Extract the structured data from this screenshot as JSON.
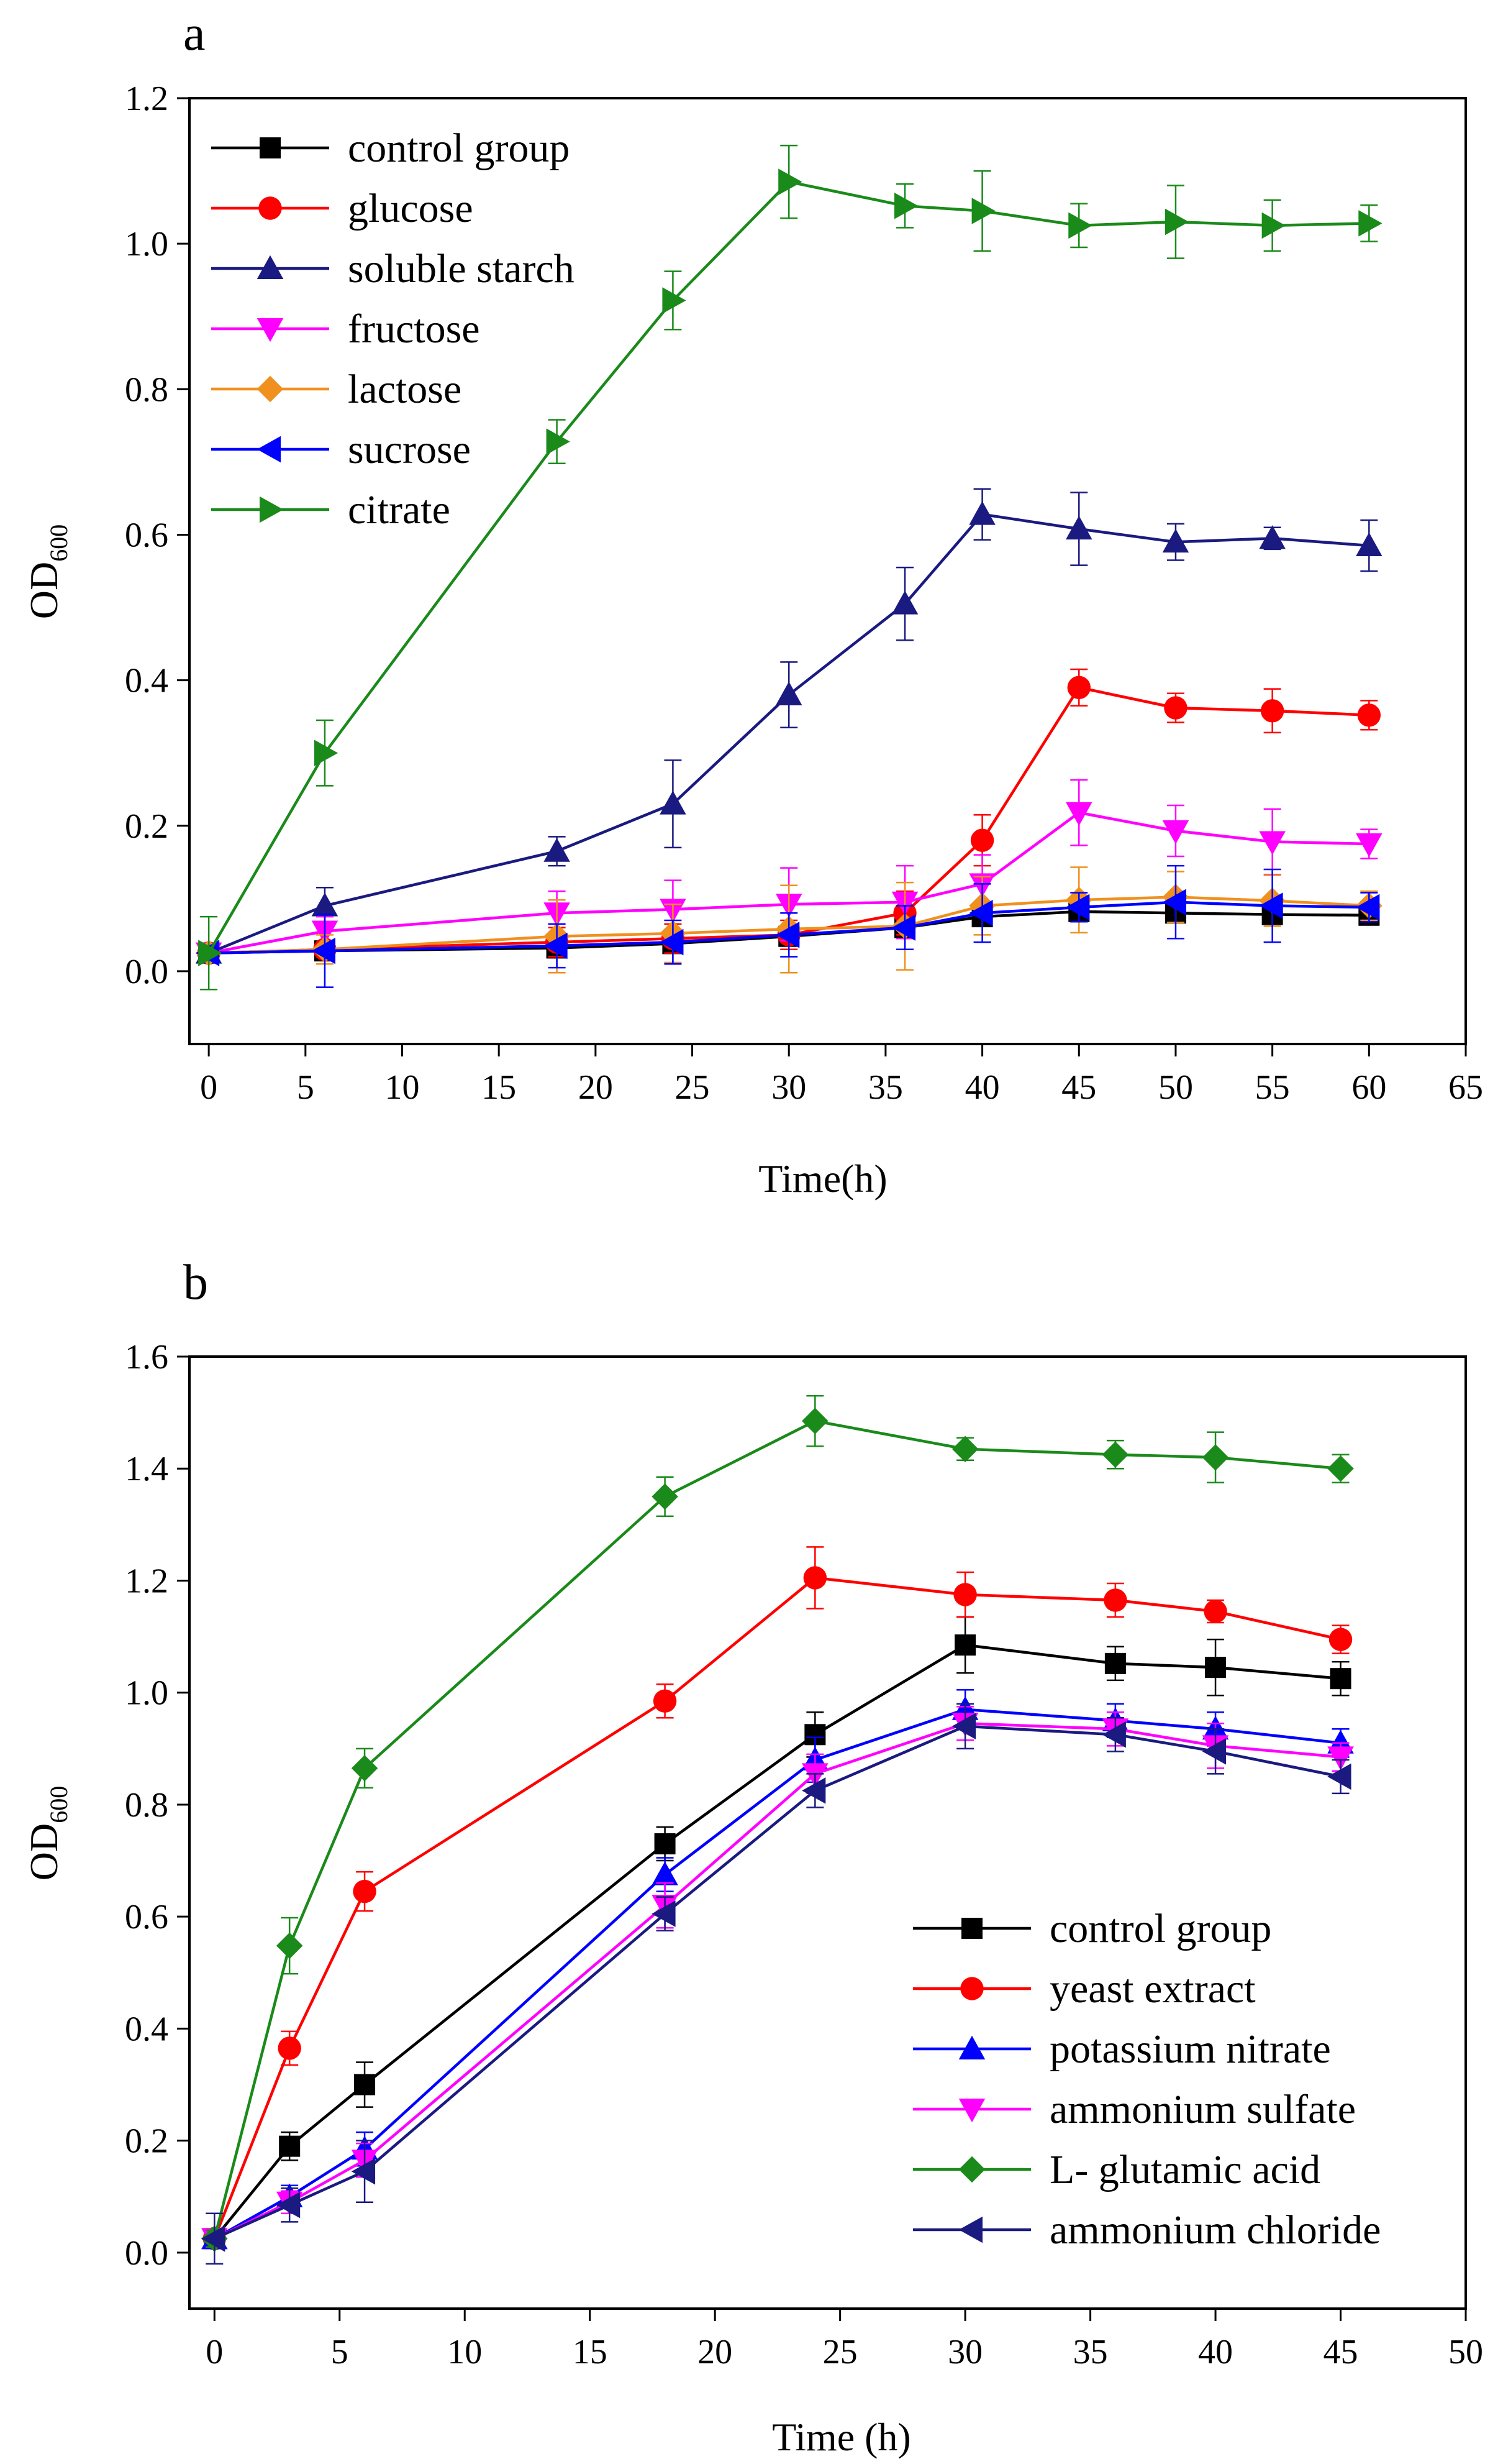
{
  "chart_data": [
    {
      "panel_label": "a",
      "type": "line",
      "xlabel": "Time(h)",
      "ylabel_main": "OD",
      "ylabel_sub": "600",
      "xlim": [
        -1,
        65
      ],
      "ylim": [
        -0.1,
        1.2
      ],
      "xticks": [
        0,
        5,
        10,
        15,
        20,
        25,
        30,
        35,
        40,
        45,
        50,
        55,
        60,
        65
      ],
      "xtick_labels": [
        "0",
        "5",
        "10",
        "15",
        "20",
        "25",
        "30",
        "35",
        "40",
        "45",
        "50",
        "55",
        "60",
        "65"
      ],
      "yticks": [
        0.0,
        0.2,
        0.4,
        0.6,
        0.8,
        1.0,
        1.2
      ],
      "ytick_labels": [
        "0.0",
        "0.2",
        "0.4",
        "0.6",
        "0.8",
        "1.0",
        "1.2"
      ],
      "legend_position": "top-left",
      "x": [
        0,
        6,
        18,
        24,
        30,
        36,
        40,
        45,
        50,
        55,
        60
      ],
      "series": [
        {
          "name": "control group",
          "color": "#000000",
          "marker": "square",
          "values": [
            0.025,
            0.028,
            0.032,
            0.038,
            0.048,
            0.06,
            0.075,
            0.082,
            0.08,
            0.078,
            0.077
          ],
          "errors": [
            0.01,
            0.01,
            0.01,
            0.01,
            0.01,
            0.01,
            0.01,
            0.01,
            0.01,
            0.01,
            0.01
          ]
        },
        {
          "name": "glucose",
          "color": "#ff0000",
          "marker": "circle",
          "values": [
            0.025,
            0.03,
            0.04,
            0.045,
            0.05,
            0.08,
            0.18,
            0.39,
            0.362,
            0.358,
            0.352
          ],
          "errors": [
            0.01,
            0.01,
            0.02,
            0.02,
            0.02,
            0.03,
            0.035,
            0.025,
            0.02,
            0.03,
            0.02
          ]
        },
        {
          "name": "soluble starch",
          "color": "#1a1a80",
          "marker": "triangle-up",
          "values": [
            0.025,
            0.09,
            0.165,
            0.23,
            0.38,
            0.505,
            0.628,
            0.608,
            0.59,
            0.595,
            0.585
          ],
          "errors": [
            0.01,
            0.025,
            0.02,
            0.06,
            0.045,
            0.05,
            0.035,
            0.05,
            0.025,
            0.015,
            0.035
          ]
        },
        {
          "name": "fructose",
          "color": "#ff00ff",
          "marker": "triangle-down",
          "values": [
            0.025,
            0.055,
            0.08,
            0.085,
            0.092,
            0.095,
            0.12,
            0.218,
            0.193,
            0.178,
            0.175
          ],
          "errors": [
            0.01,
            0.02,
            0.03,
            0.04,
            0.05,
            0.05,
            0.04,
            0.045,
            0.035,
            0.045,
            0.02
          ]
        },
        {
          "name": "lactose",
          "color": "#f0901e",
          "marker": "diamond",
          "values": [
            0.025,
            0.03,
            0.048,
            0.052,
            0.058,
            0.062,
            0.09,
            0.098,
            0.102,
            0.097,
            0.09
          ],
          "errors": [
            0.01,
            0.02,
            0.05,
            0.04,
            0.06,
            0.06,
            0.04,
            0.045,
            0.035,
            0.035,
            0.02
          ]
        },
        {
          "name": "sucrose",
          "color": "#0000ff",
          "marker": "triangle-left",
          "values": [
            0.025,
            0.028,
            0.035,
            0.04,
            0.05,
            0.06,
            0.08,
            0.088,
            0.095,
            0.09,
            0.088
          ],
          "errors": [
            0.01,
            0.05,
            0.03,
            0.03,
            0.03,
            0.03,
            0.04,
            0.02,
            0.05,
            0.05,
            0.02
          ]
        },
        {
          "name": "citrate",
          "color": "#1a8a1a",
          "marker": "triangle-right",
          "values": [
            0.025,
            0.3,
            0.728,
            0.922,
            1.085,
            1.052,
            1.045,
            1.025,
            1.03,
            1.025,
            1.028
          ],
          "errors": [
            0.05,
            0.045,
            0.03,
            0.04,
            0.05,
            0.03,
            0.055,
            0.03,
            0.05,
            0.035,
            0.025
          ]
        }
      ]
    },
    {
      "panel_label": "b",
      "type": "line",
      "xlabel": "Time (h)",
      "ylabel_main": "OD",
      "ylabel_sub": "600",
      "xlim": [
        -1,
        50
      ],
      "ylim": [
        -0.1,
        1.6
      ],
      "xticks": [
        0,
        5,
        10,
        15,
        20,
        25,
        30,
        35,
        40,
        45,
        50
      ],
      "xtick_labels": [
        "0",
        "5",
        "10",
        "15",
        "20",
        "25",
        "30",
        "35",
        "40",
        "45",
        "50"
      ],
      "yticks": [
        0.0,
        0.2,
        0.4,
        0.6,
        0.8,
        1.0,
        1.2,
        1.4,
        1.6
      ],
      "ytick_labels": [
        "0.0",
        "0.2",
        "0.4",
        "0.6",
        "0.8",
        "1.0",
        "1.2",
        "1.4",
        "1.6"
      ],
      "legend_position": "bottom-right",
      "x": [
        0,
        3,
        6,
        18,
        24,
        30,
        36,
        40,
        45
      ],
      "series": [
        {
          "name": "control group",
          "color": "#000000",
          "marker": "square",
          "values": [
            0.025,
            0.19,
            0.3,
            0.73,
            0.925,
            1.085,
            1.052,
            1.045,
            1.025
          ],
          "errors": [
            0.015,
            0.025,
            0.04,
            0.03,
            0.04,
            0.05,
            0.03,
            0.05,
            0.03
          ]
        },
        {
          "name": "yeast extract",
          "color": "#ff0000",
          "marker": "circle",
          "values": [
            0.025,
            0.365,
            0.645,
            0.985,
            1.205,
            1.175,
            1.165,
            1.145,
            1.095
          ],
          "errors": [
            0.015,
            0.03,
            0.035,
            0.03,
            0.055,
            0.04,
            0.03,
            0.02,
            0.025
          ]
        },
        {
          "name": "potassium nitrate",
          "color": "#0000ff",
          "marker": "triangle-up",
          "values": [
            0.025,
            0.1,
            0.185,
            0.675,
            0.88,
            0.97,
            0.95,
            0.935,
            0.91
          ],
          "errors": [
            0.015,
            0.02,
            0.03,
            0.03,
            0.04,
            0.035,
            0.03,
            0.03,
            0.025
          ]
        },
        {
          "name": "ammonium sulfate",
          "color": "#ff00ff",
          "marker": "triangle-down",
          "values": [
            0.025,
            0.09,
            0.165,
            0.62,
            0.855,
            0.945,
            0.935,
            0.905,
            0.885
          ],
          "errors": [
            0.015,
            0.02,
            0.03,
            0.04,
            0.035,
            0.03,
            0.03,
            0.04,
            0.025
          ]
        },
        {
          "name": "L- glutamic acid",
          "color": "#1a8a1a",
          "marker": "diamond",
          "values": [
            0.025,
            0.548,
            0.865,
            1.35,
            1.485,
            1.435,
            1.425,
            1.42,
            1.4
          ],
          "errors": [
            0.015,
            0.05,
            0.035,
            0.035,
            0.045,
            0.02,
            0.025,
            0.045,
            0.025
          ]
        },
        {
          "name": "ammonium chloride",
          "color": "#1a1a80",
          "marker": "triangle-left",
          "values": [
            0.025,
            0.085,
            0.145,
            0.605,
            0.825,
            0.94,
            0.925,
            0.895,
            0.85
          ],
          "errors": [
            0.045,
            0.03,
            0.055,
            0.03,
            0.03,
            0.04,
            0.03,
            0.04,
            0.03
          ]
        }
      ]
    }
  ]
}
